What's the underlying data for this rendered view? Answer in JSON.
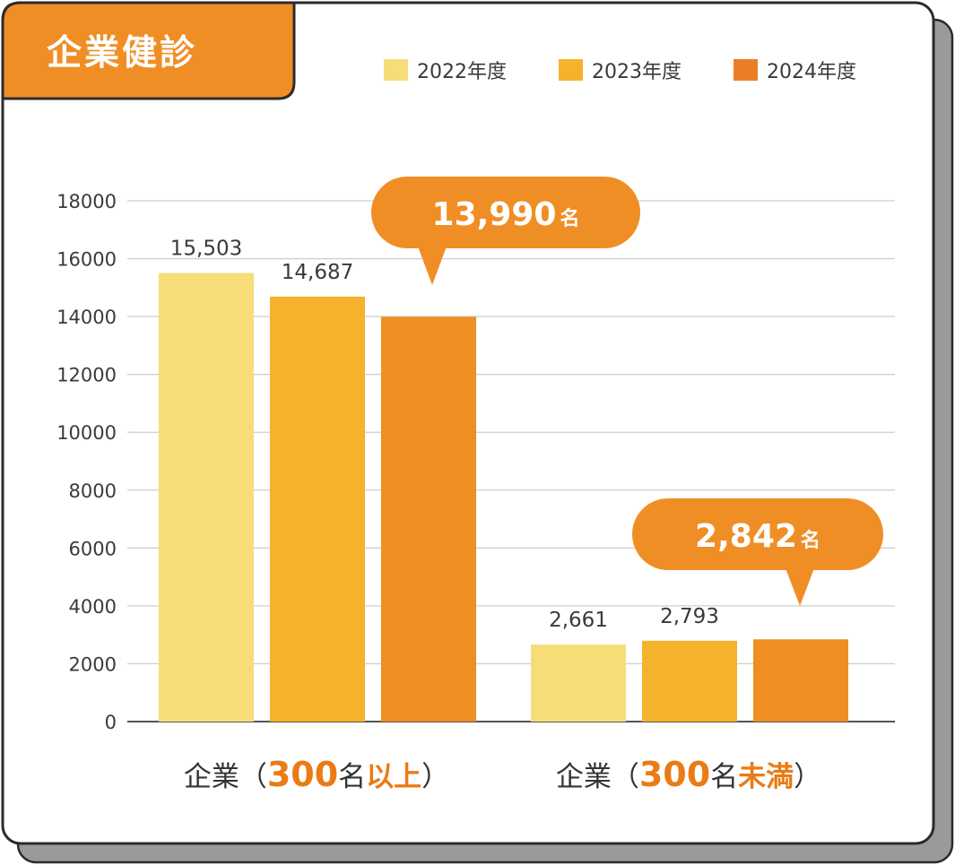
{
  "title": "企業健診",
  "colors": {
    "y2022": "#f6dd78",
    "y2023": "#f5b22c",
    "y2024": "#ef8e22",
    "callout": "#f08e26",
    "title_bg": "#f08e26",
    "accent_text": "#ea7b15",
    "grid": "#cfcfcf",
    "shadow": "#9a9a9a",
    "border": "#2b2b2b"
  },
  "legend": [
    {
      "label": "2022年度",
      "color": "#f6dd78"
    },
    {
      "label": "2023年度",
      "color": "#f5b22c"
    },
    {
      "label": "2024年度",
      "color": "#ef8e22"
    }
  ],
  "chart_data": {
    "type": "bar",
    "title": "企業健診",
    "categories": [
      "企業（300名以上）",
      "企業（300名未満）"
    ],
    "category_parts": [
      {
        "prefix": "企業（",
        "num": "300",
        "mid": "名",
        "emph": "以上",
        "suffix": "）"
      },
      {
        "prefix": "企業（",
        "num": "300",
        "mid": "名",
        "emph": "未満",
        "suffix": "）"
      }
    ],
    "series": [
      {
        "name": "2022年度",
        "values": [
          15503,
          2661
        ],
        "labels": [
          "15,503",
          "2,661"
        ],
        "color": "#f6dd78"
      },
      {
        "name": "2023年度",
        "values": [
          14687,
          2793
        ],
        "labels": [
          "14,687",
          "2,793"
        ],
        "color": "#f5b22c"
      },
      {
        "name": "2024年度",
        "values": [
          13990,
          2842
        ],
        "labels": [
          "",
          ""
        ],
        "color": "#ef8e22"
      }
    ],
    "yticks": [
      "0",
      "2000",
      "4000",
      "6000",
      "8000",
      "10000",
      "12000",
      "14000",
      "16000",
      "18000"
    ],
    "ylim": [
      0,
      18000
    ],
    "grid": true,
    "legend_position": "top-right",
    "callouts": [
      {
        "number": "13,990",
        "unit": "名"
      },
      {
        "number": "2,842",
        "unit": "名"
      }
    ]
  }
}
